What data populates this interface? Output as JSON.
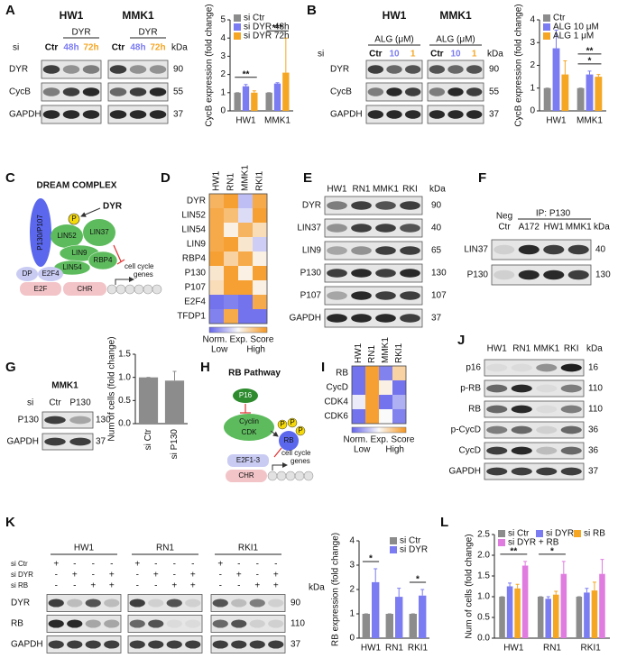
{
  "panel_labels": [
    "A",
    "B",
    "C",
    "D",
    "E",
    "F",
    "G",
    "H",
    "I",
    "J",
    "K",
    "L"
  ],
  "chart_data": [
    {
      "type": "bar",
      "y_label": "CycB expression (fold change)",
      "categories": [
        "HW1",
        "MMK1"
      ],
      "series": [
        {
          "name": "si Ctr",
          "color": "#8c8c8c",
          "values": [
            1,
            1
          ],
          "errors": [
            0,
            0
          ]
        },
        {
          "name": "si DYR 48h",
          "color": "#7b7bf2",
          "values": [
            1.35,
            1.5
          ],
          "errors": [
            0.1,
            0.05
          ]
        },
        {
          "name": "si DYR 72h",
          "color": "#f5a623",
          "values": [
            1.0,
            2.1
          ],
          "errors": [
            0.1,
            1.9
          ]
        }
      ],
      "ylim": [
        0,
        5
      ],
      "yticks": [
        0,
        1,
        2,
        3,
        4,
        5
      ],
      "significance": [
        [
          "**"
        ],
        [
          "***"
        ]
      ]
    },
    {
      "type": "bar",
      "y_label": "CycB expression (fold change)",
      "categories": [
        "HW1",
        "MMK1"
      ],
      "series": [
        {
          "name": "Ctr",
          "color": "#8c8c8c",
          "values": [
            1,
            1
          ],
          "errors": [
            0,
            0
          ]
        },
        {
          "name": "ALG 10 μM",
          "color": "#7b7bf2",
          "values": [
            2.75,
            1.6
          ],
          "errors": [
            0.8,
            0.15
          ]
        },
        {
          "name": "ALG 1 μM",
          "color": "#f5a623",
          "values": [
            1.6,
            1.5
          ],
          "errors": [
            0.6,
            0.1
          ]
        }
      ],
      "ylim": [
        0,
        4
      ],
      "yticks": [
        0,
        1,
        2,
        3,
        4
      ],
      "significance": [
        [],
        [
          "*",
          "**"
        ]
      ]
    },
    {
      "type": "bar",
      "y_label": "Num of cells (fold change)",
      "categories": [
        "si Ctr",
        "si P130"
      ],
      "values": [
        1,
        0.93
      ],
      "errors": [
        0,
        0.2
      ],
      "color": "#8c8c8c",
      "ylim": [
        0,
        1.5
      ],
      "yticks": [
        {
          "value": 0,
          "label": "0.0"
        },
        0.5,
        {
          "value": 1,
          "label": "1.0"
        },
        1.5
      ]
    },
    {
      "type": "bar",
      "y_label": "RB expression (fold change)",
      "categories": [
        "HW1",
        "RN1",
        "RKI1"
      ],
      "series": [
        {
          "name": "si Ctr",
          "color": "#8c8c8c",
          "values": [
            1,
            1,
            1
          ],
          "errors": [
            0,
            0,
            0
          ]
        },
        {
          "name": "si DYR",
          "color": "#7b7bf2",
          "values": [
            2.3,
            1.7,
            1.75
          ],
          "errors": [
            0.55,
            0.35,
            0.25
          ]
        }
      ],
      "ylim": [
        0,
        4
      ],
      "yticks": [
        0,
        1,
        2,
        3,
        4
      ],
      "significance": [
        [
          "*"
        ],
        [],
        [
          "*"
        ]
      ]
    },
    {
      "type": "bar",
      "y_label": "Num of cells (fold change)",
      "categories": [
        "HW1",
        "RN1",
        "RKI1"
      ],
      "series": [
        {
          "name": "si Ctr",
          "color": "#8c8c8c",
          "values": [
            1,
            1,
            1
          ],
          "errors": [
            0,
            0,
            0
          ]
        },
        {
          "name": "si DYR",
          "color": "#7b7bf2",
          "values": [
            1.25,
            0.95,
            1.1
          ],
          "errors": [
            0.08,
            0.05,
            0.1
          ]
        },
        {
          "name": "si RB",
          "color": "#f5a623",
          "values": [
            1.2,
            1.05,
            1.15
          ],
          "errors": [
            0.1,
            0.08,
            0.2
          ]
        },
        {
          "name": "si DYR + RB",
          "color": "#e07be0",
          "values": [
            1.75,
            1.55,
            1.55
          ],
          "errors": [
            0.1,
            0.3,
            0.35
          ]
        }
      ],
      "ylim": [
        0,
        2.5
      ],
      "yticks": [
        {
          "value": 0,
          "label": "0.0"
        },
        0.5,
        {
          "value": 1,
          "label": "1.0"
        },
        1.5,
        {
          "value": 2,
          "label": "2.0"
        },
        2.5
      ],
      "significance": [
        [
          "**"
        ],
        [
          "*"
        ],
        []
      ]
    },
    {
      "type": "heatmap",
      "columns": [
        "HW1",
        "RN1",
        "MMK1",
        "RKI1"
      ],
      "rows": [
        "DYR",
        "LIN52",
        "LIN54",
        "LIN9",
        "RBP4",
        "P130",
        "P107",
        "E2F4",
        "TFDP1"
      ],
      "values": [
        [
          0.7,
          0.9,
          -0.4,
          0.8
        ],
        [
          0.8,
          0.6,
          -0.2,
          0.9
        ],
        [
          0.8,
          0.1,
          0.7,
          0.3
        ],
        [
          0.8,
          0.9,
          0.2,
          -0.3
        ],
        [
          0.9,
          0.4,
          0.8,
          0.1
        ],
        [
          0.2,
          0.9,
          0.1,
          0.9
        ],
        [
          0.3,
          0.9,
          0.9,
          0.1
        ],
        [
          -0.9,
          -0.8,
          -0.9,
          0.8
        ],
        [
          -0.8,
          0.8,
          -0.9,
          -0.9
        ]
      ],
      "legend_title": "Norm. Exp. Score",
      "low_label": "Low",
      "high_label": "High"
    },
    {
      "type": "heatmap",
      "columns": [
        "HW1",
        "RN1",
        "MMK1",
        "RKI1"
      ],
      "rows": [
        "RB",
        "CycD",
        "CDK4",
        "CDK6"
      ],
      "values": [
        [
          -0.9,
          0.9,
          -0.8,
          0.4
        ],
        [
          -0.9,
          0.9,
          0.1,
          -0.9
        ],
        [
          -0.1,
          0.9,
          -0.9,
          -0.5
        ],
        [
          -0.9,
          0.9,
          0.0,
          -0.8
        ]
      ],
      "legend_title": "Norm. Exp. Score",
      "low_label": "Low",
      "high_label": "High"
    }
  ],
  "blots": {
    "A": {
      "si": "si",
      "groups": [
        {
          "name": "HW1",
          "treatment": "DYR",
          "lanes": [
            "Ctr",
            "48h",
            "72h"
          ]
        },
        {
          "name": "MMK1",
          "treatment": "DYR",
          "lanes": [
            "Ctr",
            "48h",
            "72h"
          ]
        }
      ],
      "rows": [
        "DYR",
        "CycB",
        "GAPDH"
      ],
      "kda_title": "kDa",
      "kda": [
        90,
        55,
        37
      ]
    },
    "B": {
      "si": "si",
      "groups": [
        {
          "name": "HW1",
          "treatment": "ALG (μM)",
          "lanes": [
            "Ctr",
            "10",
            "1"
          ]
        },
        {
          "name": "MMK1",
          "treatment": "ALG (μM)",
          "lanes": [
            "Ctr",
            "10",
            "1"
          ]
        }
      ],
      "rows": [
        "DYR",
        "CycB",
        "GAPDH"
      ],
      "kda_title": "kDa",
      "kda": [
        90,
        55,
        37
      ]
    },
    "E": {
      "lanes": [
        "HW1",
        "RN1",
        "MMK1",
        "RKI"
      ],
      "rows": [
        "DYR",
        "LIN37",
        "LIN9",
        "P130",
        "P107",
        "GAPDH"
      ],
      "kda_title": "kDa",
      "kda": [
        90,
        40,
        65,
        130,
        107,
        37
      ]
    },
    "F": {
      "ip": "IP: P130",
      "neg_ctr": [
        "Neg",
        "Ctr"
      ],
      "lanes": [
        "A172",
        "HW1",
        "MMK1"
      ],
      "rows": [
        "LIN37",
        "P130"
      ],
      "kda_title": "kDa",
      "kda": [
        40,
        130
      ]
    },
    "G": {
      "title": "MMK1",
      "si": "si",
      "lanes": [
        "Ctr",
        "P130"
      ],
      "rows": [
        "P130",
        "GAPDH"
      ],
      "kda": [
        130,
        37
      ]
    },
    "J": {
      "lanes": [
        "HW1",
        "RN1",
        "MMK1",
        "RKI"
      ],
      "rows": [
        "p16",
        "p-RB",
        "RB",
        "p-CycD",
        "CycD",
        "GAPDH"
      ],
      "kda_title": "kDa",
      "kda": [
        16,
        110,
        110,
        36,
        36,
        37
      ]
    },
    "K": {
      "groups": [
        "HW1",
        "RN1",
        "RKI1"
      ],
      "conditions": [
        "si Ctr",
        "si DYR",
        "si RB"
      ],
      "signs": [
        [
          "+",
          "-",
          "-",
          "-"
        ],
        [
          "-",
          "+",
          "-",
          "+"
        ],
        [
          "-",
          "-",
          "+",
          "+"
        ]
      ],
      "rows": [
        "DYR",
        "RB",
        "GAPDH"
      ],
      "kda_title": "kDa",
      "kda": [
        90,
        110,
        37
      ]
    }
  },
  "diagrams": {
    "C": {
      "title": "DREAM COMPLEX",
      "kinase": "DYR",
      "phospho": "P",
      "labels": {
        "p130": "P130/P107",
        "lin52": "LIN52",
        "lin37": "LIN37",
        "lin9": "LIN9",
        "lin54": "LIN54",
        "rbp4": "RBP4",
        "dp": "DP",
        "e2f4": "E2F4",
        "e2f": "E2F",
        "chr": "CHR"
      },
      "genes": [
        "cell cycle",
        "genes"
      ]
    },
    "H": {
      "title": "RB Pathway",
      "p16": "P16",
      "cyclin": "Cyclin",
      "cdk": "CDK",
      "rb": "RB",
      "phospho": "P",
      "e2f": "E2F1-3",
      "chr": "CHR",
      "genes": [
        "cell cycle",
        "genes"
      ]
    }
  }
}
